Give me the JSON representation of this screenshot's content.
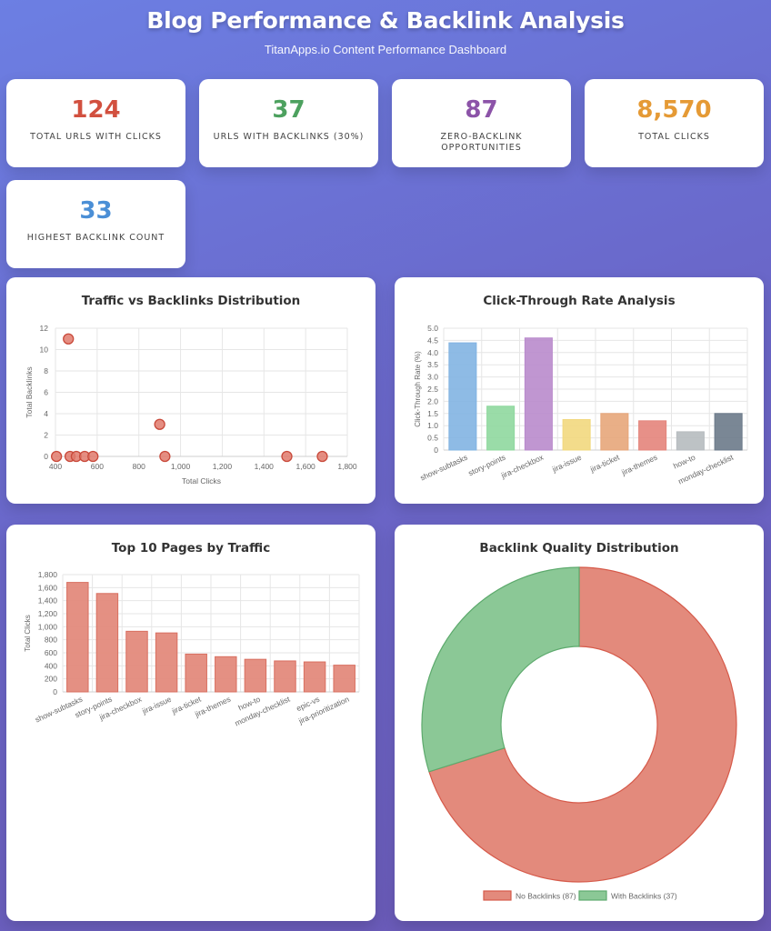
{
  "header": {
    "title": "Blog Performance & Backlink Analysis",
    "subtitle": "TitanApps.io Content Performance Dashboard"
  },
  "stats": [
    {
      "value": "124",
      "label": "Total URLs with Clicks",
      "color": "#d2503f"
    },
    {
      "value": "37",
      "label": "URLs with Backlinks (30%)",
      "color": "#4da15f"
    },
    {
      "value": "87",
      "label": "Zero-Backlink Opportunities",
      "color": "#8c53a8"
    },
    {
      "value": "8,570",
      "label": "Total Clicks",
      "color": "#e59a35"
    },
    {
      "value": "33",
      "label": "Highest Backlink Count",
      "color": "#4b8fd6"
    }
  ],
  "chart_data": [
    {
      "type": "scatter",
      "title": "Traffic vs Backlinks Distribution",
      "xlabel": "Total Clicks",
      "ylabel": "Total Backlinks",
      "xlim": [
        400,
        1800
      ],
      "ylim": [
        0,
        12
      ],
      "xticks": [
        400,
        600,
        800,
        1000,
        1200,
        1400,
        1600,
        1800
      ],
      "xtick_labels": [
        "400",
        "600",
        "800",
        "1,000",
        "1,200",
        "1,400",
        "1,600",
        "1,800"
      ],
      "yticks": [
        0,
        2,
        4,
        6,
        8,
        10,
        12
      ],
      "points": [
        {
          "x": 405,
          "y": 0
        },
        {
          "x": 462,
          "y": 11
        },
        {
          "x": 470,
          "y": 0
        },
        {
          "x": 500,
          "y": 0
        },
        {
          "x": 540,
          "y": 0
        },
        {
          "x": 580,
          "y": 0
        },
        {
          "x": 900,
          "y": 3
        },
        {
          "x": 925,
          "y": 0
        },
        {
          "x": 1510,
          "y": 0
        },
        {
          "x": 1680,
          "y": 0
        }
      ],
      "color": "#e07a6c"
    },
    {
      "type": "bar",
      "title": "Click-Through Rate Analysis",
      "ylabel": "Click-Through Rate (%)",
      "ylim": [
        0,
        5
      ],
      "yticks": [
        "0",
        "0.5",
        "1.0",
        "1.5",
        "2.0",
        "2.5",
        "3.0",
        "3.5",
        "4.0",
        "4.5",
        "5.0"
      ],
      "categories": [
        "show-subtasks",
        "story-points",
        "jira-checkbox",
        "jira-issue",
        "jira-ticket",
        "jira-themes",
        "how-to",
        "monday-checklist"
      ],
      "values": [
        4.4,
        1.8,
        4.6,
        1.25,
        1.5,
        1.2,
        0.75,
        1.5
      ],
      "colors": [
        "#82b4e2",
        "#8fd89e",
        "#b98bcc",
        "#f2d87e",
        "#e7a67a",
        "#e4847b",
        "#b6bbbf",
        "#6b7a8a"
      ]
    },
    {
      "type": "bar",
      "title": "Top 10 Pages by Traffic",
      "ylabel": "Total Clicks",
      "ylim": [
        0,
        1800
      ],
      "yticks": [
        0,
        200,
        400,
        600,
        800,
        1000,
        1200,
        1400,
        1600,
        1800
      ],
      "ytick_labels": [
        "0",
        "200",
        "400",
        "600",
        "800",
        "1,000",
        "1,200",
        "1,400",
        "1,600",
        "1,800"
      ],
      "categories": [
        "show-subtasks",
        "story-points",
        "jira-checkbox",
        "jira-issue",
        "jira-ticket",
        "jira-themes",
        "how-to",
        "monday-checklist",
        "epic-vs",
        "jira-prioritization"
      ],
      "values": [
        1680,
        1510,
        930,
        905,
        580,
        540,
        500,
        475,
        460,
        410
      ],
      "color": "#e38a7c"
    },
    {
      "type": "pie",
      "title": "Backlink Quality Distribution",
      "labels": [
        "No Backlinks (87)",
        "With Backlinks (37)"
      ],
      "values": [
        87,
        37
      ],
      "colors": [
        "#e38a7c",
        "#8bc896"
      ],
      "borders": [
        "#d65a4a",
        "#5daa6d"
      ],
      "legend": "bottom"
    }
  ]
}
